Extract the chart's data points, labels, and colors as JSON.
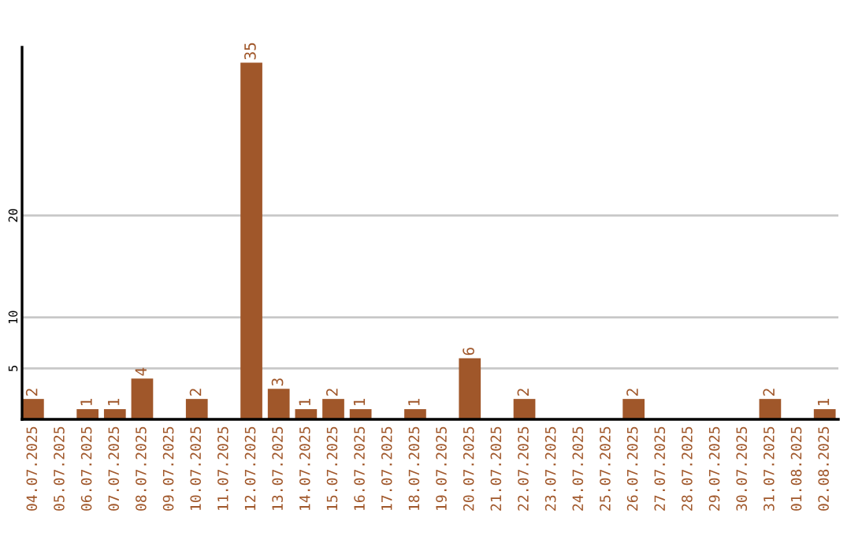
{
  "chart_data": {
    "type": "bar",
    "categories": [
      "04.07.2025",
      "05.07.2025",
      "06.07.2025",
      "07.07.2025",
      "08.07.2025",
      "09.07.2025",
      "10.07.2025",
      "11.07.2025",
      "12.07.2025",
      "13.07.2025",
      "14.07.2025",
      "15.07.2025",
      "16.07.2025",
      "17.07.2025",
      "18.07.2025",
      "19.07.2025",
      "20.07.2025",
      "21.07.2025",
      "22.07.2025",
      "23.07.2025",
      "24.07.2025",
      "25.07.2025",
      "26.07.2025",
      "27.07.2025",
      "28.07.2025",
      "29.07.2025",
      "30.07.2025",
      "31.07.2025",
      "01.08.2025",
      "02.08.2025"
    ],
    "values": [
      2,
      0,
      1,
      1,
      4,
      0,
      2,
      0,
      35,
      3,
      1,
      2,
      1,
      0,
      1,
      0,
      6,
      0,
      2,
      0,
      0,
      0,
      2,
      0,
      0,
      0,
      0,
      2,
      0,
      1
    ],
    "value_labels": [
      "2",
      null,
      "1",
      "1",
      "4",
      null,
      "2",
      null,
      "35",
      "3",
      "1",
      "2",
      "1",
      null,
      "1",
      null,
      "6",
      null,
      "2",
      null,
      null,
      null,
      "2",
      null,
      null,
      null,
      null,
      "2",
      null,
      "1"
    ],
    "color": "#a0572a",
    "ylim": [
      0,
      36.5
    ],
    "yticks": [
      5,
      10,
      20
    ],
    "grid": "y"
  }
}
